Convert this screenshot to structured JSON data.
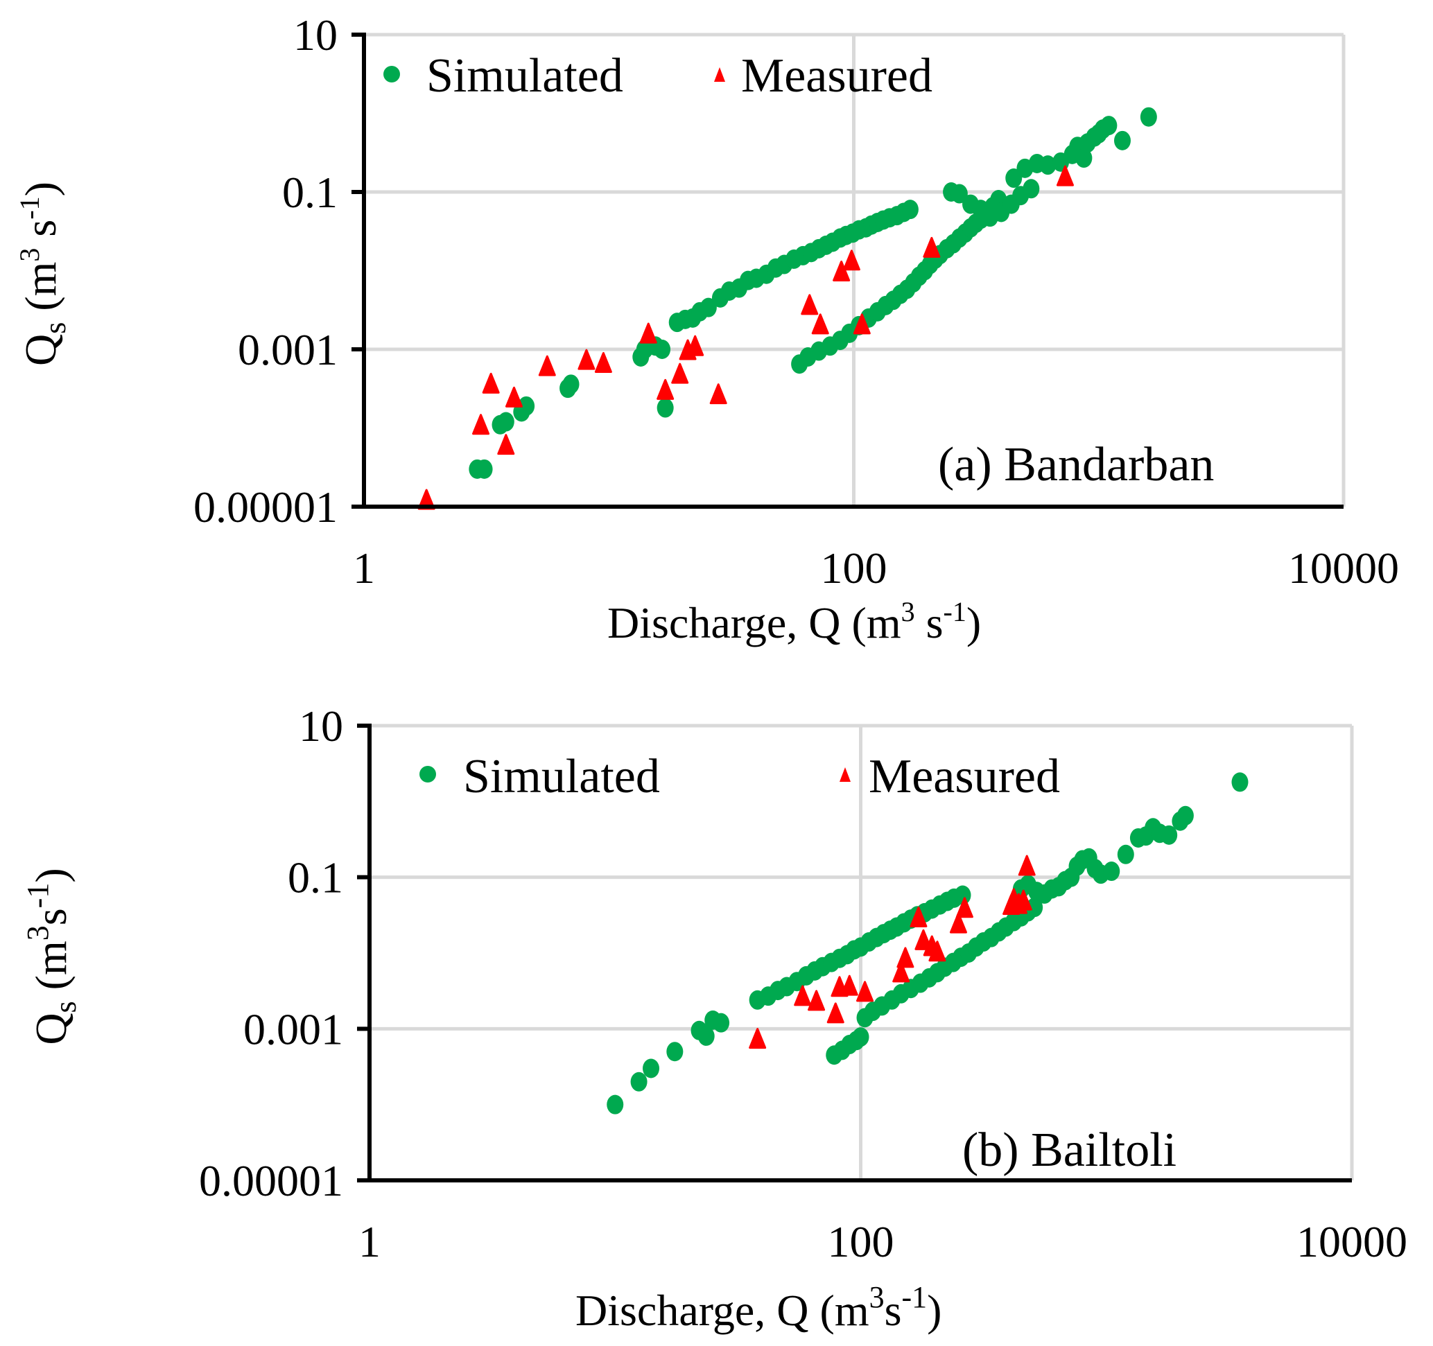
{
  "chart_data": [
    {
      "type": "scatter",
      "panel": "a",
      "annotation": "(a) Bandarban",
      "xlabel": "Discharge, Q (m³ s⁻¹)",
      "ylabel": "Qs (m³ s⁻¹)",
      "xscale": "log",
      "yscale": "log",
      "xlim": [
        1,
        10000
      ],
      "ylim": [
        1e-05,
        10
      ],
      "xticks": [
        "1",
        "100",
        "10000"
      ],
      "yticks": [
        "10",
        "0.1",
        "0.001",
        "0.00001"
      ],
      "grid": true,
      "legend": {
        "placement": "top-left",
        "entries": [
          {
            "name": "Simulated",
            "marker": "circle"
          },
          {
            "name": "Measured",
            "marker": "triangle"
          }
        ]
      },
      "series": [
        {
          "name": "Simulated",
          "color": "#00a94f",
          "marker": "circle",
          "points": [
            [
              2.9,
              3e-05
            ],
            [
              3.1,
              3e-05
            ],
            [
              3.6,
              0.00011
            ],
            [
              3.8,
              0.00012
            ],
            [
              4.4,
              0.00016
            ],
            [
              4.6,
              0.00019
            ],
            [
              6.8,
              0.00032
            ],
            [
              7.0,
              0.00036
            ],
            [
              13.5,
              0.0008
            ],
            [
              14.0,
              0.001
            ],
            [
              15.5,
              0.0011
            ],
            [
              16.5,
              0.001
            ],
            [
              17.0,
              0.00018
            ],
            [
              19.0,
              0.0022
            ],
            [
              20.5,
              0.0024
            ],
            [
              22.0,
              0.0025
            ],
            [
              23.5,
              0.003
            ],
            [
              25.5,
              0.0034
            ],
            [
              28.5,
              0.0045
            ],
            [
              31.0,
              0.0055
            ],
            [
              34.0,
              0.006
            ],
            [
              37.0,
              0.0075
            ],
            [
              40.0,
              0.008
            ],
            [
              44.0,
              0.009
            ],
            [
              48.0,
              0.0108
            ],
            [
              52.0,
              0.012
            ],
            [
              57.0,
              0.014
            ],
            [
              62.0,
              0.0155
            ],
            [
              67.0,
              0.017
            ],
            [
              72.0,
              0.019
            ],
            [
              77.0,
              0.021
            ],
            [
              82.0,
              0.023
            ],
            [
              88.0,
              0.026
            ],
            [
              93.0,
              0.028
            ],
            [
              99.0,
              0.03
            ],
            [
              105.0,
              0.033
            ],
            [
              112.0,
              0.035
            ],
            [
              118.0,
              0.038
            ],
            [
              125.0,
              0.041
            ],
            [
              132.0,
              0.044
            ],
            [
              140.0,
              0.047
            ],
            [
              150.0,
              0.05
            ],
            [
              160.0,
              0.055
            ],
            [
              170.0,
              0.06
            ],
            [
              60.0,
              0.00065
            ],
            [
              65.0,
              0.0008
            ],
            [
              72.0,
              0.00095
            ],
            [
              80.0,
              0.0011
            ],
            [
              88.0,
              0.0013
            ],
            [
              96.0,
              0.0016
            ],
            [
              105.0,
              0.002
            ],
            [
              115.0,
              0.0025
            ],
            [
              125.0,
              0.003
            ],
            [
              135.0,
              0.0036
            ],
            [
              145.0,
              0.0042
            ],
            [
              155.0,
              0.005
            ],
            [
              165.0,
              0.0058
            ],
            [
              175.0,
              0.007
            ],
            [
              185.0,
              0.0085
            ],
            [
              195.0,
              0.01
            ],
            [
              205.0,
              0.012
            ],
            [
              215.0,
              0.014
            ],
            [
              225.0,
              0.016
            ],
            [
              240.0,
              0.019
            ],
            [
              255.0,
              0.022
            ],
            [
              270.0,
              0.026
            ],
            [
              285.0,
              0.03
            ],
            [
              300.0,
              0.035
            ],
            [
              315.0,
              0.04
            ],
            [
              330.0,
              0.045
            ],
            [
              350.0,
              0.055
            ],
            [
              370.0,
              0.065
            ],
            [
              390.0,
              0.08
            ],
            [
              250.0,
              0.1
            ],
            [
              270.0,
              0.095
            ],
            [
              300.0,
              0.07
            ],
            [
              330.0,
              0.06
            ],
            [
              360.0,
              0.048
            ],
            [
              400.0,
              0.055
            ],
            [
              440.0,
              0.07
            ],
            [
              480.0,
              0.09
            ],
            [
              530.0,
              0.11
            ],
            [
              450.0,
              0.15
            ],
            [
              500.0,
              0.2
            ],
            [
              560.0,
              0.23
            ],
            [
              620.0,
              0.22
            ],
            [
              700.0,
              0.24
            ],
            [
              780.0,
              0.3
            ],
            [
              820.0,
              0.38
            ],
            [
              870.0,
              0.27
            ],
            [
              900.0,
              0.42
            ],
            [
              960.0,
              0.5
            ],
            [
              1000.0,
              0.55
            ],
            [
              1040.0,
              0.63
            ],
            [
              1100.0,
              0.7
            ],
            [
              1250.0,
              0.45
            ],
            [
              1600.0,
              0.9
            ]
          ]
        },
        {
          "name": "Measured",
          "color": "#ff0000",
          "marker": "triangle",
          "points": [
            [
              1.8,
              1e-05
            ],
            [
              3.0,
              9e-05
            ],
            [
              3.3,
              0.0003
            ],
            [
              3.8,
              5e-05
            ],
            [
              4.1,
              0.0002
            ],
            [
              5.6,
              0.0005
            ],
            [
              8.1,
              0.0006
            ],
            [
              9.5,
              0.00055
            ],
            [
              14.5,
              0.0013
            ],
            [
              17.0,
              0.00025
            ],
            [
              19.5,
              0.0004
            ],
            [
              21.0,
              0.0008
            ],
            [
              22.5,
              0.0009
            ],
            [
              28.0,
              0.00022
            ],
            [
              66.0,
              0.003
            ],
            [
              73.0,
              0.0017
            ],
            [
              89.0,
              0.008
            ],
            [
              98.0,
              0.011
            ],
            [
              108.0,
              0.0017
            ],
            [
              208.0,
              0.016
            ],
            [
              730.0,
              0.13
            ]
          ]
        }
      ]
    },
    {
      "type": "scatter",
      "panel": "b",
      "annotation": "(b) Bailtoli",
      "xlabel": "Discharge, Q (m³s⁻¹)",
      "ylabel": "Qs (m³s⁻¹)",
      "xscale": "log",
      "yscale": "log",
      "xlim": [
        1,
        10000
      ],
      "ylim": [
        1e-05,
        10
      ],
      "xticks": [
        "1",
        "100",
        "10000"
      ],
      "yticks": [
        "10",
        "0.1",
        "0.001",
        "0.00001"
      ],
      "grid": true,
      "legend": {
        "placement": "top-left",
        "entries": [
          {
            "name": "Simulated",
            "marker": "circle"
          },
          {
            "name": "Measured",
            "marker": "triangle"
          }
        ]
      },
      "series": [
        {
          "name": "Simulated",
          "color": "#00a94f",
          "marker": "circle",
          "points": [
            [
              10.0,
              0.0001
            ],
            [
              12.5,
              0.0002
            ],
            [
              14.0,
              0.0003
            ],
            [
              17.5,
              0.0005
            ],
            [
              22.0,
              0.00095
            ],
            [
              23.5,
              0.0008
            ],
            [
              25.0,
              0.0013
            ],
            [
              27.0,
              0.0012
            ],
            [
              38.0,
              0.0024
            ],
            [
              42.0,
              0.0027
            ],
            [
              46.0,
              0.0032
            ],
            [
              50.0,
              0.0036
            ],
            [
              55.0,
              0.0042
            ],
            [
              60.0,
              0.005
            ],
            [
              65.0,
              0.0058
            ],
            [
              70.0,
              0.0066
            ],
            [
              76.0,
              0.0075
            ],
            [
              82.0,
              0.0085
            ],
            [
              88.0,
              0.0095
            ],
            [
              94.0,
              0.011
            ],
            [
              100.0,
              0.012
            ],
            [
              108.0,
              0.014
            ],
            [
              116.0,
              0.016
            ],
            [
              124.0,
              0.018
            ],
            [
              132.0,
              0.02
            ],
            [
              140.0,
              0.022
            ],
            [
              150.0,
              0.025
            ],
            [
              160.0,
              0.028
            ],
            [
              170.0,
              0.031
            ],
            [
              182.0,
              0.034
            ],
            [
              195.0,
              0.038
            ],
            [
              210.0,
              0.043
            ],
            [
              225.0,
              0.048
            ],
            [
              240.0,
              0.053
            ],
            [
              260.0,
              0.058
            ],
            [
              78.0,
              0.00045
            ],
            [
              84.0,
              0.00052
            ],
            [
              90.0,
              0.00062
            ],
            [
              96.0,
              0.0007
            ],
            [
              100.0,
              0.00078
            ],
            [
              104.0,
              0.0014
            ],
            [
              112.0,
              0.0017
            ],
            [
              122.0,
              0.002
            ],
            [
              134.0,
              0.0024
            ],
            [
              146.0,
              0.0029
            ],
            [
              160.0,
              0.0034
            ],
            [
              175.0,
              0.004
            ],
            [
              190.0,
              0.0047
            ],
            [
              205.0,
              0.0055
            ],
            [
              220.0,
              0.0065
            ],
            [
              238.0,
              0.0075
            ],
            [
              256.0,
              0.0088
            ],
            [
              275.0,
              0.01
            ],
            [
              295.0,
              0.012
            ],
            [
              316.0,
              0.014
            ],
            [
              340.0,
              0.016
            ],
            [
              365.0,
              0.019
            ],
            [
              390.0,
              0.022
            ],
            [
              420.0,
              0.026
            ],
            [
              450.0,
              0.03
            ],
            [
              480.0,
              0.035
            ],
            [
              510.0,
              0.04
            ],
            [
              450.0,
              0.07
            ],
            [
              480.0,
              0.08
            ],
            [
              520.0,
              0.065
            ],
            [
              560.0,
              0.06
            ],
            [
              600.0,
              0.07
            ],
            [
              640.0,
              0.075
            ],
            [
              680.0,
              0.09
            ],
            [
              720.0,
              0.1
            ],
            [
              760.0,
              0.14
            ],
            [
              800.0,
              0.17
            ],
            [
              850.0,
              0.18
            ],
            [
              900.0,
              0.13
            ],
            [
              950.0,
              0.11
            ],
            [
              1050.0,
              0.12
            ],
            [
              1200.0,
              0.2
            ],
            [
              1350.0,
              0.33
            ],
            [
              1450.0,
              0.35
            ],
            [
              1550.0,
              0.45
            ],
            [
              1650.0,
              0.38
            ],
            [
              1800.0,
              0.36
            ],
            [
              2000.0,
              0.55
            ],
            [
              2100.0,
              0.65
            ],
            [
              3500.0,
              1.8
            ]
          ]
        },
        {
          "name": "Measured",
          "color": "#ff0000",
          "marker": "triangle",
          "points": [
            [
              38.0,
              0.0006
            ],
            [
              58.0,
              0.0022
            ],
            [
              66.0,
              0.0019
            ],
            [
              79.0,
              0.0013
            ],
            [
              82.0,
              0.0029
            ],
            [
              90.0,
              0.003
            ],
            [
              104.0,
              0.0025
            ],
            [
              146.0,
              0.0045
            ],
            [
              152.0,
              0.007
            ],
            [
              172.0,
              0.024
            ],
            [
              180.0,
              0.012
            ],
            [
              195.0,
              0.01
            ],
            [
              205.0,
              0.0085
            ],
            [
              250.0,
              0.02
            ],
            [
              265.0,
              0.032
            ],
            [
              410.0,
              0.035
            ],
            [
              420.0,
              0.042
            ],
            [
              440.0,
              0.036
            ],
            [
              460.0,
              0.04
            ],
            [
              475.0,
              0.115
            ]
          ]
        }
      ]
    }
  ]
}
